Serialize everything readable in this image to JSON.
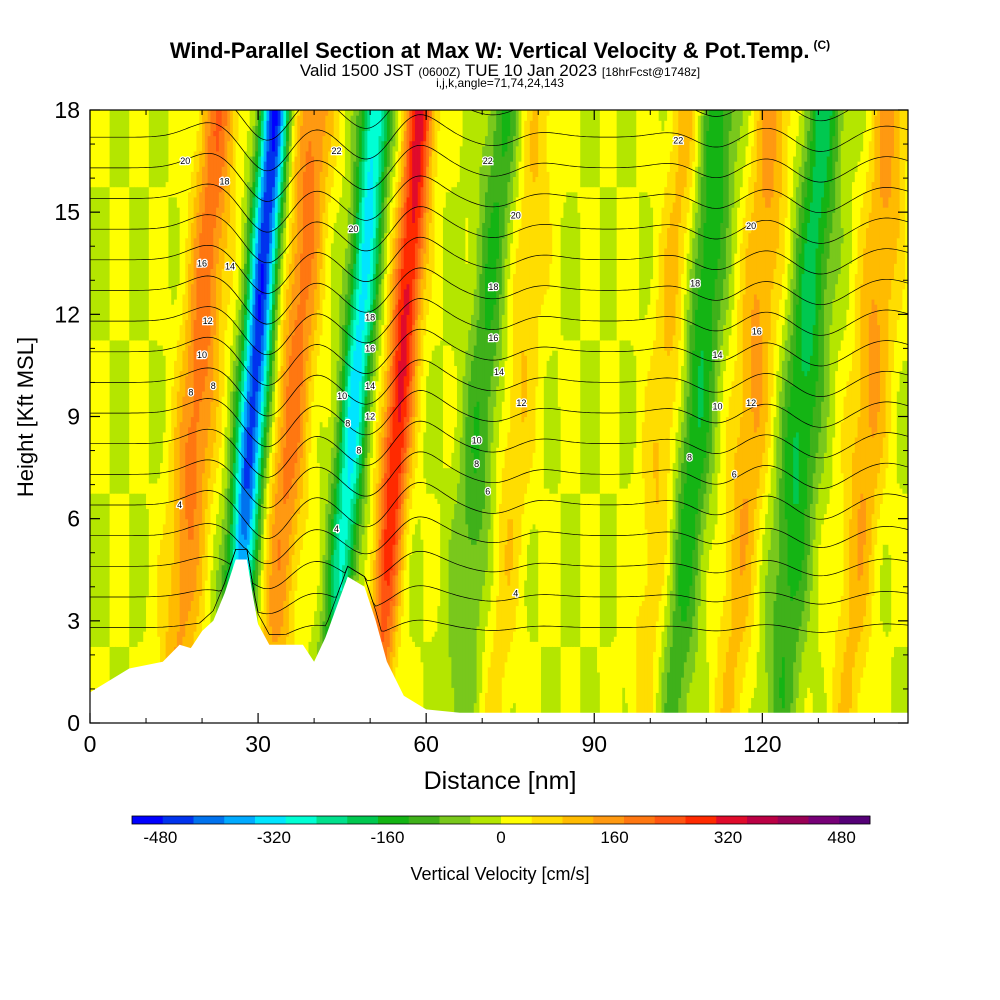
{
  "header": {
    "title": "Wind-Parallel Section at Max W: Vertical Velocity & Pot.Temp.",
    "copyright": "(C)",
    "valid_prefix": "Valid 1500 JST",
    "valid_zulu": "(0600Z)",
    "valid_date": "TUE 10 Jan 2023",
    "forecast": "[18hrFcst@1748z]",
    "indices": "i,j,k,angle=71,74,24,143"
  },
  "chart_data": {
    "type": "heatmap",
    "xlabel": "Distance [nm]",
    "ylabel": "Height [Kft MSL]",
    "xlim": [
      0,
      146
    ],
    "ylim": [
      0,
      18
    ],
    "x_ticks": [
      "0",
      "30",
      "60",
      "90",
      "120"
    ],
    "y_ticks": [
      "0",
      "3",
      "6",
      "9",
      "12",
      "15",
      "18"
    ],
    "colorbar": {
      "label": "Vertical Velocity [cm/s]",
      "range": [
        -520,
        520
      ],
      "tick_labels": [
        "-480",
        "-320",
        "-160",
        "0",
        "160",
        "320",
        "480"
      ],
      "colors": [
        "#0000ff",
        "#0033ee",
        "#0072ee",
        "#00aaff",
        "#00e5ff",
        "#00ffd4",
        "#00e08c",
        "#00c850",
        "#14b414",
        "#3fb11a",
        "#79c81c",
        "#b4e600",
        "#ffff00",
        "#ffdd00",
        "#ffbb00",
        "#ff9911",
        "#ff7711",
        "#ff5511",
        "#ff2a00",
        "#e00b2b",
        "#bb0044",
        "#990055",
        "#770077",
        "#550077"
      ]
    },
    "terrain_kft": [
      {
        "x": 0,
        "z": 0.9
      },
      {
        "x": 4,
        "z": 1.3
      },
      {
        "x": 7,
        "z": 1.6
      },
      {
        "x": 13,
        "z": 1.8
      },
      {
        "x": 16,
        "z": 2.3
      },
      {
        "x": 18,
        "z": 2.2
      },
      {
        "x": 20,
        "z": 2.7
      },
      {
        "x": 22,
        "z": 3.0
      },
      {
        "x": 24,
        "z": 3.8
      },
      {
        "x": 26,
        "z": 4.8
      },
      {
        "x": 28,
        "z": 4.8
      },
      {
        "x": 29,
        "z": 3.8
      },
      {
        "x": 30,
        "z": 2.9
      },
      {
        "x": 32,
        "z": 2.3
      },
      {
        "x": 38,
        "z": 2.3
      },
      {
        "x": 40,
        "z": 1.8
      },
      {
        "x": 42,
        "z": 2.5
      },
      {
        "x": 44,
        "z": 3.4
      },
      {
        "x": 46,
        "z": 4.3
      },
      {
        "x": 49,
        "z": 4.0
      },
      {
        "x": 51,
        "z": 3.0
      },
      {
        "x": 53,
        "z": 1.8
      },
      {
        "x": 56,
        "z": 0.8
      },
      {
        "x": 60,
        "z": 0.4
      },
      {
        "x": 66,
        "z": 0.3
      },
      {
        "x": 146,
        "z": 0.3
      }
    ],
    "updrafts": [
      {
        "x": 19,
        "peak_cm_s": 200
      },
      {
        "x": 36,
        "peak_cm_s": 190
      },
      {
        "x": 55,
        "peak_cm_s": 320
      },
      {
        "x": 76,
        "peak_cm_s": 90
      },
      {
        "x": 103,
        "peak_cm_s": 110
      },
      {
        "x": 118,
        "peak_cm_s": 140
      },
      {
        "x": 139,
        "peak_cm_s": 140
      }
    ],
    "downdrafts": [
      {
        "x": 29,
        "peak_cm_s": -470
      },
      {
        "x": 47,
        "peak_cm_s": -320
      },
      {
        "x": 70,
        "peak_cm_s": -130
      },
      {
        "x": 108,
        "peak_cm_s": -180
      },
      {
        "x": 127,
        "peak_cm_s": -190
      }
    ],
    "theta_contour_labels": [
      {
        "value": "4",
        "x": 16,
        "z": 6.4
      },
      {
        "value": "4",
        "x": 44,
        "z": 5.7
      },
      {
        "value": "4",
        "x": 76,
        "z": 3.8
      },
      {
        "value": "6",
        "x": 71,
        "z": 6.8
      },
      {
        "value": "6",
        "x": 115,
        "z": 7.3
      },
      {
        "value": "8",
        "x": 18,
        "z": 9.7
      },
      {
        "value": "8",
        "x": 46,
        "z": 8.8
      },
      {
        "value": "8",
        "x": 69,
        "z": 7.6
      },
      {
        "value": "8",
        "x": 107,
        "z": 7.8
      },
      {
        "value": "8",
        "x": 48,
        "z": 8.0
      },
      {
        "value": "8",
        "x": 22,
        "z": 9.9
      },
      {
        "value": "10",
        "x": 20,
        "z": 10.8
      },
      {
        "value": "10",
        "x": 45,
        "z": 9.6
      },
      {
        "value": "10",
        "x": 69,
        "z": 8.3
      },
      {
        "value": "10",
        "x": 112,
        "z": 9.3
      },
      {
        "value": "12",
        "x": 21,
        "z": 11.8
      },
      {
        "value": "12",
        "x": 50,
        "z": 9.0
      },
      {
        "value": "12",
        "x": 77,
        "z": 9.4
      },
      {
        "value": "12",
        "x": 118,
        "z": 9.4
      },
      {
        "value": "14",
        "x": 25,
        "z": 13.4
      },
      {
        "value": "14",
        "x": 50,
        "z": 9.9
      },
      {
        "value": "14",
        "x": 73,
        "z": 10.3
      },
      {
        "value": "14",
        "x": 112,
        "z": 10.8
      },
      {
        "value": "16",
        "x": 20,
        "z": 13.5
      },
      {
        "value": "16",
        "x": 50,
        "z": 11.0
      },
      {
        "value": "16",
        "x": 72,
        "z": 11.3
      },
      {
        "value": "16",
        "x": 119,
        "z": 11.5
      },
      {
        "value": "18",
        "x": 24,
        "z": 15.9
      },
      {
        "value": "18",
        "x": 50,
        "z": 11.9
      },
      {
        "value": "18",
        "x": 72,
        "z": 12.8
      },
      {
        "value": "18",
        "x": 108,
        "z": 12.9
      },
      {
        "value": "20",
        "x": 17,
        "z": 16.5
      },
      {
        "value": "20",
        "x": 47,
        "z": 14.5
      },
      {
        "value": "20",
        "x": 76,
        "z": 14.9
      },
      {
        "value": "20",
        "x": 118,
        "z": 14.6
      },
      {
        "value": "22",
        "x": 44,
        "z": 16.8
      },
      {
        "value": "22",
        "x": 71,
        "z": 16.5
      },
      {
        "value": "22",
        "x": 105,
        "z": 17.1
      }
    ],
    "grid": false,
    "legend": "colorbar-bottom"
  }
}
